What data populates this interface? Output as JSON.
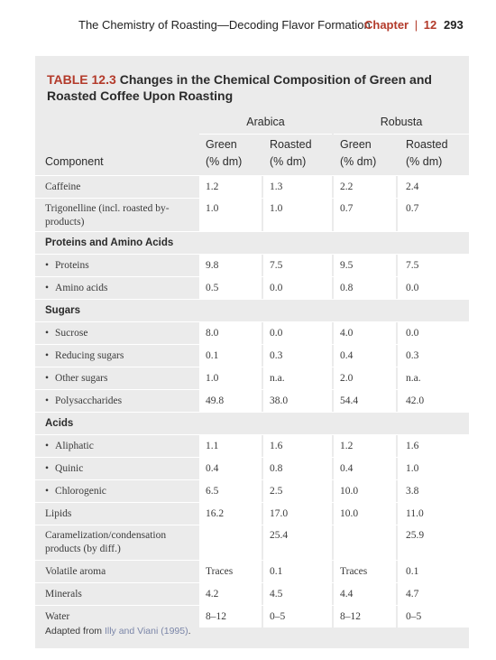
{
  "header": {
    "book_title": "The Chemistry of Roasting—Decoding Flavor Formation",
    "chapter_word": "Chapter",
    "chapter_number": "12",
    "page_number": "293"
  },
  "table": {
    "label": "TABLE 12.3",
    "title": "Changes in the Chemical Composition of Green and Roasted Coffee Upon Roasting",
    "groups": [
      "Arabica",
      "Robusta"
    ],
    "subheaders": {
      "component": "Component",
      "green": "Green",
      "roasted": "Roasted",
      "unit": "(% dm)"
    },
    "rows": [
      {
        "type": "data",
        "label": "Caffeine",
        "bullet": false,
        "values": [
          "1.2",
          "1.3",
          "2.2",
          "2.4"
        ],
        "h": 24
      },
      {
        "type": "data",
        "label": "Trigonelline (incl. roasted by-products)",
        "bullet": false,
        "values": [
          "1.0",
          "1.0",
          "0.7",
          "0.7"
        ],
        "h": 36,
        "top": true
      },
      {
        "type": "section",
        "label": "Proteins and Amino Acids",
        "h": 24
      },
      {
        "type": "data",
        "label": "Proteins",
        "bullet": true,
        "values": [
          "9.8",
          "7.5",
          "9.5",
          "7.5"
        ],
        "h": 24
      },
      {
        "type": "data",
        "label": "Amino acids",
        "bullet": true,
        "values": [
          "0.5",
          "0.0",
          "0.8",
          "0.0"
        ],
        "h": 24
      },
      {
        "type": "section",
        "label": "Sugars",
        "h": 24
      },
      {
        "type": "data",
        "label": "Sucrose",
        "bullet": true,
        "values": [
          "8.0",
          "0.0",
          "4.0",
          "0.0"
        ],
        "h": 24
      },
      {
        "type": "data",
        "label": "Reducing sugars",
        "bullet": true,
        "values": [
          "0.1",
          "0.3",
          "0.4",
          "0.3"
        ],
        "h": 24
      },
      {
        "type": "data",
        "label": "Other sugars",
        "bullet": true,
        "values": [
          "1.0",
          "n.a.",
          "2.0",
          "n.a."
        ],
        "h": 24
      },
      {
        "type": "data",
        "label": "Polysaccharides",
        "bullet": true,
        "values": [
          "49.8",
          "38.0",
          "54.4",
          "42.0"
        ],
        "h": 24
      },
      {
        "type": "section",
        "label": "Acids",
        "h": 24
      },
      {
        "type": "data",
        "label": "Aliphatic",
        "bullet": true,
        "values": [
          "1.1",
          "1.6",
          "1.2",
          "1.6"
        ],
        "h": 24
      },
      {
        "type": "data",
        "label": "Quinic",
        "bullet": true,
        "values": [
          "0.4",
          "0.8",
          "0.4",
          "1.0"
        ],
        "h": 24
      },
      {
        "type": "data",
        "label": "Chlorogenic",
        "bullet": true,
        "values": [
          "6.5",
          "2.5",
          "10.0",
          "3.8"
        ],
        "h": 24
      },
      {
        "type": "data",
        "label": "Lipids",
        "bullet": false,
        "values": [
          "16.2",
          "17.0",
          "10.0",
          "11.0"
        ],
        "h": 24
      },
      {
        "type": "data",
        "label": "Caramelization/condensation products (by diff.)",
        "bullet": false,
        "values": [
          "",
          "25.4",
          "",
          "25.9"
        ],
        "h": 38,
        "top": true
      },
      {
        "type": "data",
        "label": "Volatile aroma",
        "bullet": false,
        "values": [
          "Traces",
          "0.1",
          "Traces",
          "0.1"
        ],
        "h": 24
      },
      {
        "type": "data",
        "label": "Minerals",
        "bullet": false,
        "values": [
          "4.2",
          "4.5",
          "4.4",
          "4.7"
        ],
        "h": 24
      },
      {
        "type": "data",
        "label": "Water",
        "bullet": false,
        "values": [
          "8–12",
          "0–5",
          "8–12",
          "0–5"
        ],
        "h": 24
      }
    ],
    "footnote_prefix": "Adapted from",
    "footnote_ref": "Illy and Viani (1995)",
    "footnote_suffix": "."
  }
}
